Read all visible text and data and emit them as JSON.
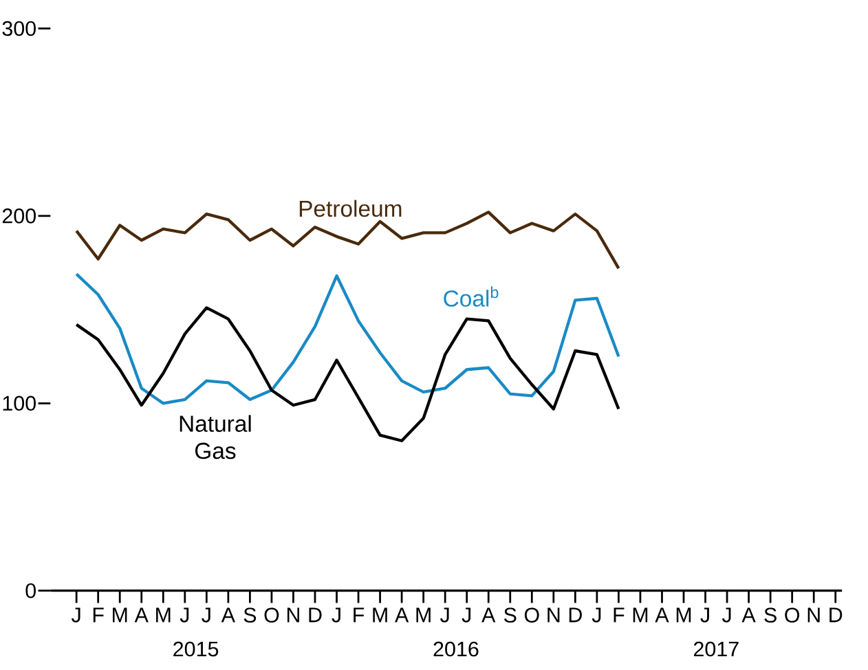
{
  "chart_data": {
    "type": "line",
    "categories": [
      "J",
      "F",
      "M",
      "A",
      "M",
      "J",
      "J",
      "A",
      "S",
      "O",
      "N",
      "D",
      "J",
      "F",
      "M",
      "A",
      "M",
      "J",
      "J",
      "A",
      "S",
      "O",
      "N",
      "D",
      "J",
      "F",
      "M",
      "A",
      "M",
      "J",
      "J",
      "A",
      "S",
      "O",
      "N",
      "D"
    ],
    "series": [
      {
        "name": "Petroleum",
        "color": "#4a2a0c",
        "values": [
          192,
          177,
          195,
          187,
          193,
          191,
          201,
          198,
          187,
          193,
          184,
          194,
          189,
          185,
          197,
          188,
          191,
          191,
          196,
          202,
          191,
          196,
          192,
          201,
          192,
          172,
          null,
          null,
          null,
          null,
          null,
          null,
          null,
          null,
          null,
          null
        ]
      },
      {
        "name": "Coal$^{b}$",
        "color": "#1a8ac6",
        "values": [
          169,
          158,
          140,
          108,
          100,
          102,
          112,
          111,
          102,
          107,
          122,
          141,
          168,
          144,
          127,
          112,
          106,
          108,
          118,
          119,
          105,
          104,
          117,
          155,
          156,
          125,
          null,
          null,
          null,
          null,
          null,
          null,
          null,
          null,
          null,
          null
        ]
      },
      {
        "name": "Natural Gas",
        "color": "#000000",
        "values": [
          142,
          134,
          118,
          99,
          116,
          137,
          151,
          145,
          128,
          107,
          99,
          102,
          123,
          103,
          83,
          80,
          92,
          126,
          145,
          144,
          124,
          110,
          97,
          128,
          126,
          97,
          null,
          null,
          null,
          null,
          null,
          null,
          null,
          null,
          null,
          null
        ]
      }
    ],
    "annotations": [
      "2015",
      "2016",
      "2017"
    ],
    "ylim": [
      0,
      300
    ],
    "yticks": [
      0,
      100,
      200,
      300
    ],
    "grid": false
  }
}
